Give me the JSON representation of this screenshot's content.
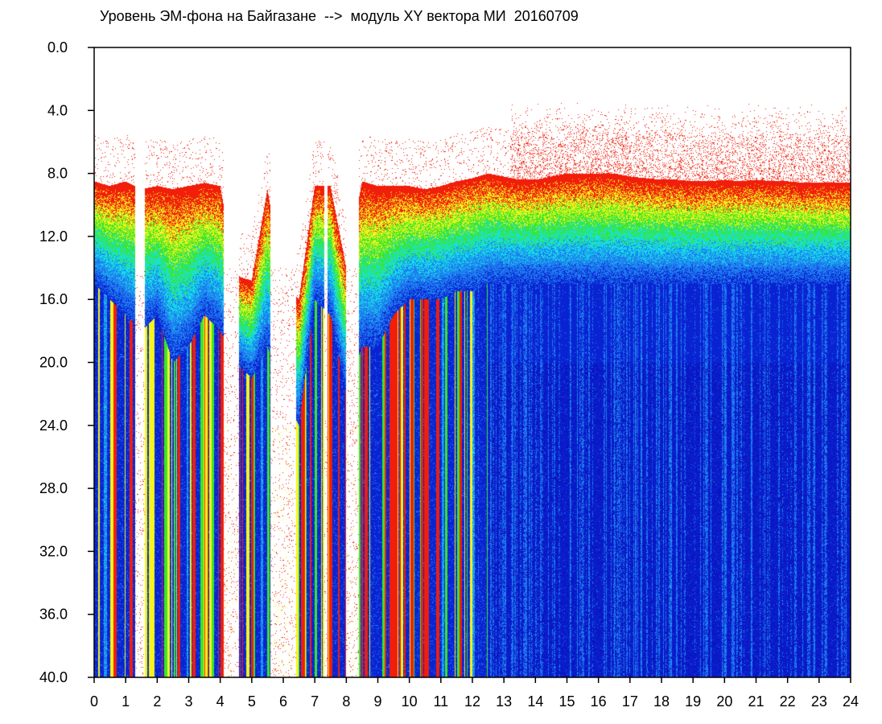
{
  "chart_data": {
    "type": "heatmap",
    "title": "Уровень ЭМ-фона на Байгазане  -->  модуль XY вектора МИ  20160709",
    "xlabel": "",
    "ylabel": "",
    "x_range": [
      0,
      24
    ],
    "y_range": [
      0,
      40
    ],
    "y_inverted": true,
    "x_ticks": [
      "0",
      "1",
      "2",
      "3",
      "4",
      "5",
      "6",
      "7",
      "8",
      "9",
      "10",
      "11",
      "12",
      "13",
      "14",
      "15",
      "16",
      "17",
      "18",
      "19",
      "20",
      "21",
      "22",
      "23",
      "24"
    ],
    "y_ticks": [
      "0.0",
      "4.0",
      "8.0",
      "12.0",
      "16.0",
      "20.0",
      "24.0",
      "28.0",
      "32.0",
      "36.0",
      "40.0"
    ],
    "grid": false,
    "colors": {
      "background": "#ffffff",
      "low": "#0a23d2",
      "mid_low": "#1e7df0",
      "mid": "#15e1e6",
      "mid_high": "#3ce628",
      "high": "#f5f51e",
      "peak": "#f01e0a"
    },
    "column_profiles": {
      "hour": [
        0,
        0.5,
        1,
        1.5,
        2,
        2.5,
        3,
        3.5,
        4,
        4.5,
        5,
        5.5,
        6,
        6.5,
        7,
        7.5,
        8,
        8.5,
        9,
        9.5,
        10,
        10.5,
        11,
        11.5,
        12,
        12.5,
        13,
        13.5,
        14,
        14.5,
        15,
        15.5,
        16,
        16.5,
        17,
        17.5,
        18,
        18.5,
        19,
        19.5,
        20,
        20.5,
        21,
        21.5,
        22,
        22.5,
        23,
        23.5,
        24
      ],
      "signal_top": [
        8.5,
        8.8,
        8.5,
        9.0,
        8.8,
        9.0,
        8.8,
        8.6,
        8.8,
        14.5,
        14.8,
        9.0,
        15.0,
        16.0,
        8.8,
        8.8,
        14.0,
        8.5,
        8.8,
        8.8,
        8.8,
        9.0,
        8.8,
        8.5,
        8.3,
        8.0,
        8.2,
        8.4,
        8.4,
        8.2,
        8.0,
        8.0,
        8.0,
        8.0,
        8.2,
        8.3,
        8.4,
        8.4,
        8.5,
        8.5,
        8.4,
        8.5,
        8.4,
        8.5,
        8.5,
        8.6,
        8.6,
        8.6,
        8.6
      ],
      "blue_onset": [
        15.0,
        16.0,
        17.0,
        18.0,
        17.0,
        20.0,
        19.0,
        17.0,
        18.0,
        20.0,
        21.0,
        19.0,
        22.0,
        24.0,
        16.0,
        17.0,
        22.0,
        19.0,
        19.0,
        17.0,
        16.0,
        16.0,
        16.0,
        15.5,
        15.5,
        15.0,
        15.0,
        15.0,
        15.0,
        15.0,
        15.0,
        15.0,
        15.0,
        15.0,
        15.0,
        15.0,
        15.0,
        15.0,
        15.0,
        15.0,
        15.0,
        15.0,
        15.0,
        15.0,
        15.0,
        15.0,
        15.0,
        15.0,
        15.0
      ],
      "gap_intervals": [
        [
          1.3,
          1.6
        ],
        [
          4.1,
          4.6
        ],
        [
          5.6,
          6.4
        ],
        [
          7.3,
          7.4
        ],
        [
          8.0,
          8.4
        ]
      ],
      "flare_top": [
        [
          13.2,
          24.0,
          3.5
        ]
      ]
    }
  }
}
